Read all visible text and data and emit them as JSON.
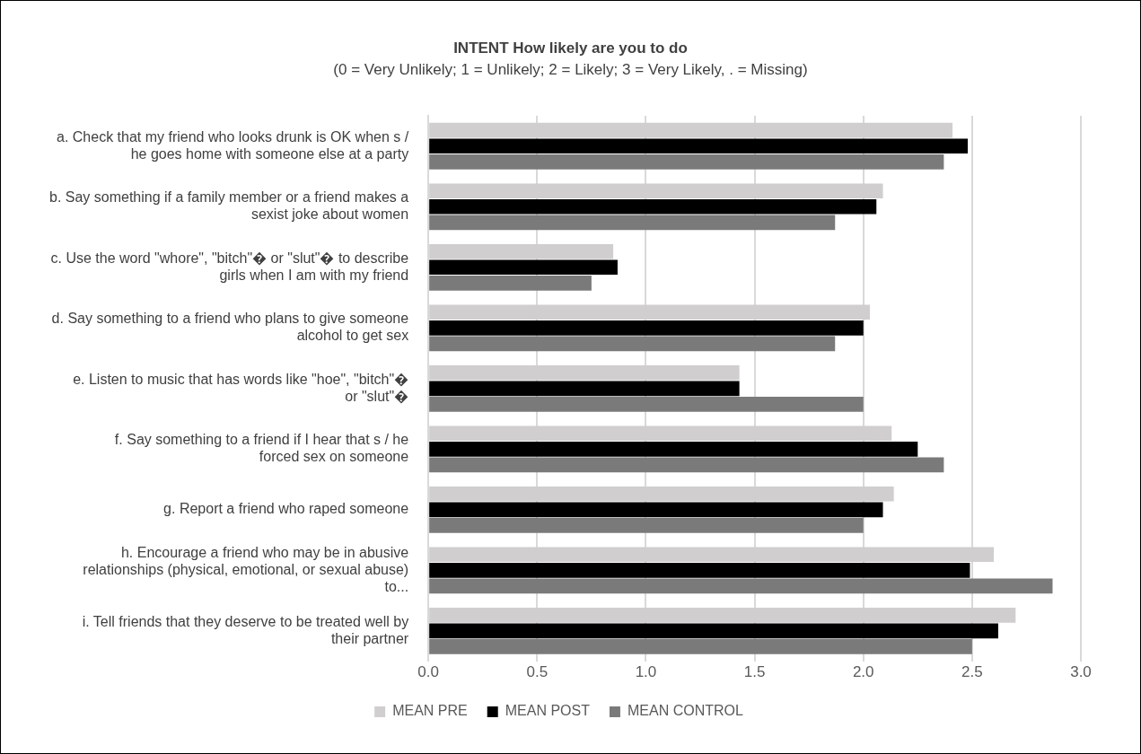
{
  "chart_data": {
    "type": "bar",
    "orientation": "horizontal",
    "title": "INTENT How likely are you to do",
    "subtitle": "(0 = Very Unlikely; 1 = Unlikely; 2 = Likely; 3 = Very Likely, . = Missing)",
    "categories": [
      "a. Check that my friend who looks drunk is OK when s / he goes home with someone else at a party",
      "b. Say something if a family member or a friend makes a sexist joke about women",
      "c. Use the word \"whore\", \"bitch\"� or \"slut\"� to describe girls when I am with my friend",
      "d. Say something to a friend who plans to give someone alcohol to get sex",
      "e. Listen to music that has words like \"hoe\", \"bitch\"� or \"slut\"�",
      "f. Say something to a friend if I hear that s / he forced sex on someone",
      "g. Report a friend who raped someone",
      "h. Encourage a friend who may be in abusive relationships (physical, emotional, or sexual abuse) to...",
      "i. Tell friends that they deserve to be treated well by their partner"
    ],
    "series": [
      {
        "name": "MEAN PRE",
        "color": "#d0cece",
        "values": [
          2.41,
          2.09,
          0.85,
          2.03,
          1.43,
          2.13,
          2.14,
          2.6,
          2.7
        ]
      },
      {
        "name": "MEAN POST",
        "color": "#000000",
        "values": [
          2.48,
          2.06,
          0.87,
          2.0,
          1.43,
          2.25,
          2.09,
          2.49,
          2.62
        ]
      },
      {
        "name": "MEAN CONTROL",
        "color": "#7a7a7a",
        "values": [
          2.37,
          1.87,
          0.75,
          1.87,
          2.0,
          2.37,
          2.0,
          2.87,
          2.5
        ]
      }
    ],
    "xlim": [
      0,
      3
    ],
    "xticks": [
      {
        "value": 0,
        "label": "0.0"
      },
      {
        "value": 0.5,
        "label": "0.5"
      },
      {
        "value": 1,
        "label": "1.0"
      },
      {
        "value": 1.5,
        "label": "1.5"
      },
      {
        "value": 2,
        "label": "2.0"
      },
      {
        "value": 2.5,
        "label": "2.5"
      },
      {
        "value": 3,
        "label": "3.0"
      }
    ],
    "grid": "x",
    "legend": "bottom"
  }
}
